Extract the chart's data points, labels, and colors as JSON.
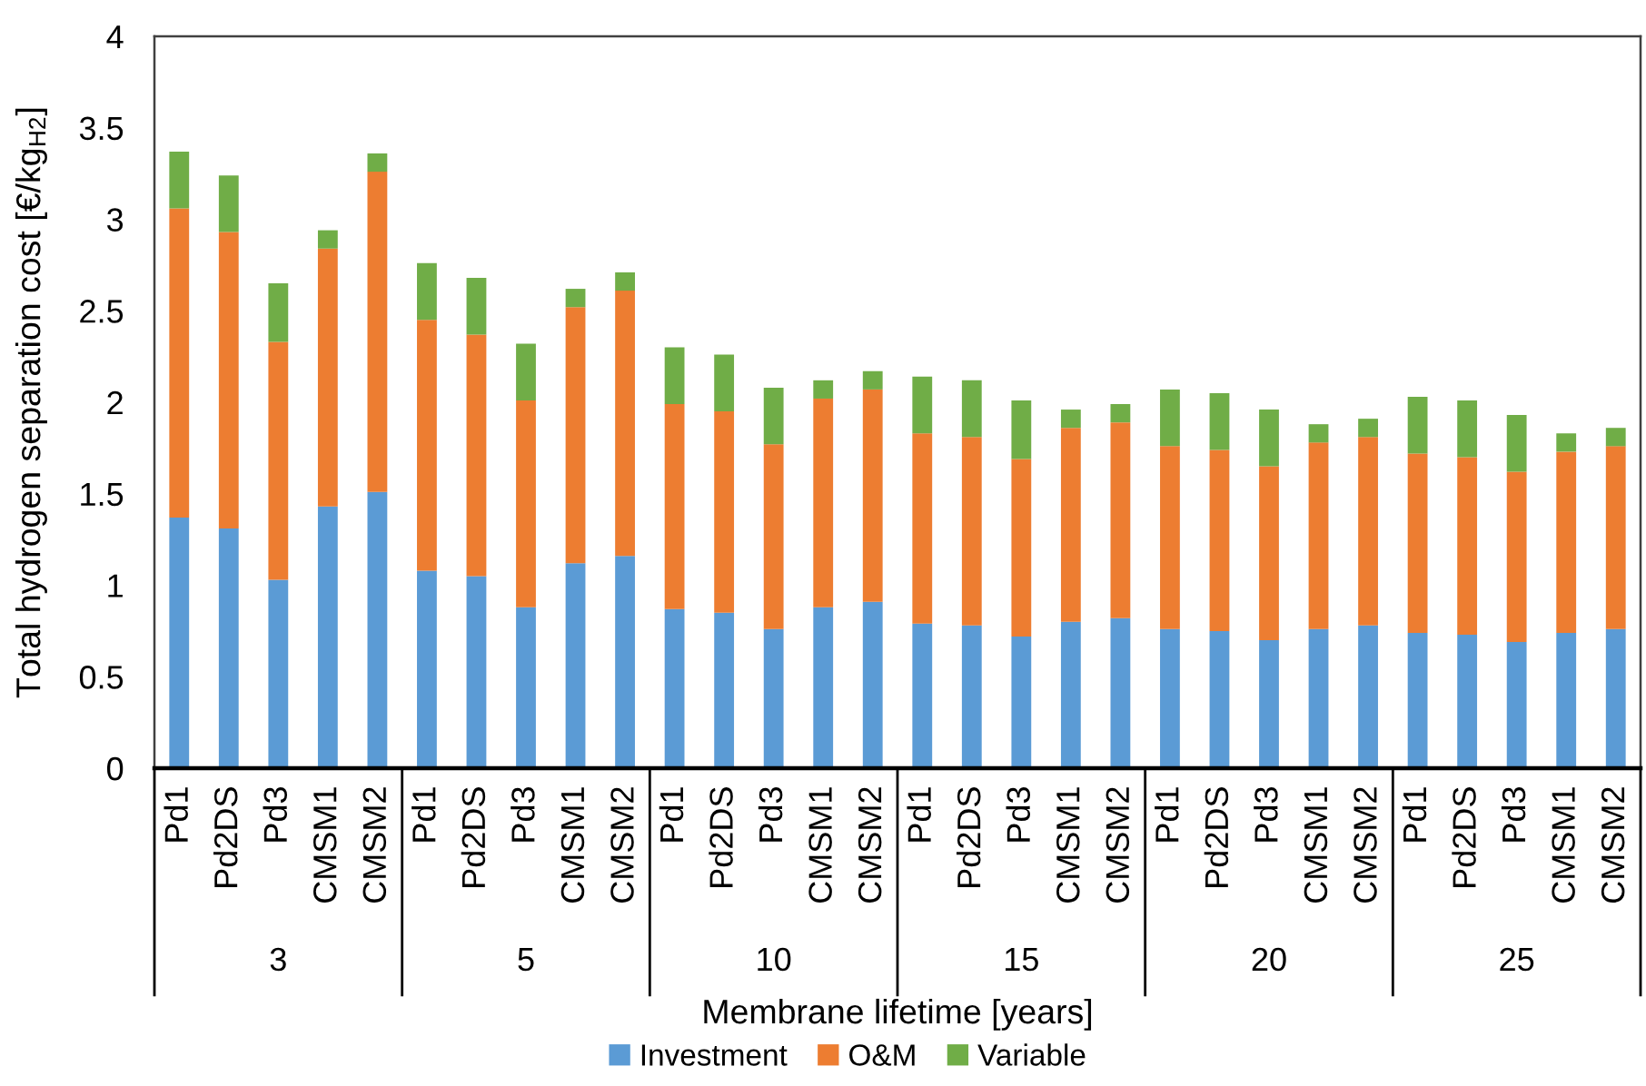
{
  "chart_data": {
    "type": "bar",
    "stacked": true,
    "xlabel": "Membrane lifetime [years]",
    "ylabel": "Total hydrogen separation cost [€/kg$_{H2}$]",
    "categories": [
      "Pd1",
      "Pd2DS",
      "Pd3",
      "CMSM1",
      "CMSM2",
      "Pd1",
      "Pd2DS",
      "Pd3",
      "CMSM1",
      "CMSM2",
      "Pd1",
      "Pd2DS",
      "Pd3",
      "CMSM1",
      "CMSM2",
      "Pd1",
      "Pd2DS",
      "Pd3",
      "CMSM1",
      "CMSM2",
      "Pd1",
      "Pd2DS",
      "Pd3",
      "CMSM1",
      "CMSM2",
      "Pd1",
      "Pd2DS",
      "Pd3",
      "CMSM1",
      "CMSM2"
    ],
    "annotations": [
      "3",
      "5",
      "10",
      "15",
      "20",
      "25"
    ],
    "series": [
      {
        "name": "Investment",
        "color": "#5b9bd5",
        "values": [
          1.37,
          1.31,
          1.03,
          1.43,
          1.51,
          1.08,
          1.05,
          0.88,
          1.12,
          1.16,
          0.87,
          0.85,
          0.76,
          0.88,
          0.91,
          0.79,
          0.78,
          0.72,
          0.8,
          0.82,
          0.76,
          0.75,
          0.7,
          0.76,
          0.78,
          0.74,
          0.73,
          0.69,
          0.74,
          0.76
        ]
      },
      {
        "name": "O&M",
        "color": "#ed7d31",
        "values": [
          1.69,
          1.62,
          1.3,
          1.41,
          1.75,
          1.37,
          1.32,
          1.13,
          1.4,
          1.45,
          1.12,
          1.1,
          1.01,
          1.14,
          1.16,
          1.04,
          1.03,
          0.97,
          1.06,
          1.07,
          1.0,
          0.99,
          0.95,
          1.02,
          1.03,
          0.98,
          0.97,
          0.93,
          0.99,
          1.0
        ]
      },
      {
        "name": "Variable",
        "color": "#70ad47",
        "values": [
          0.31,
          0.31,
          0.32,
          0.1,
          0.1,
          0.31,
          0.31,
          0.31,
          0.1,
          0.1,
          0.31,
          0.31,
          0.31,
          0.1,
          0.1,
          0.31,
          0.31,
          0.32,
          0.1,
          0.1,
          0.31,
          0.31,
          0.31,
          0.1,
          0.1,
          0.31,
          0.31,
          0.31,
          0.1,
          0.1
        ]
      }
    ],
    "ylim": [
      0,
      4
    ],
    "yticks": [
      0,
      0.5,
      1,
      1.5,
      2,
      2.5,
      3,
      3.5,
      4
    ],
    "grid": false,
    "legend": "bottom"
  }
}
